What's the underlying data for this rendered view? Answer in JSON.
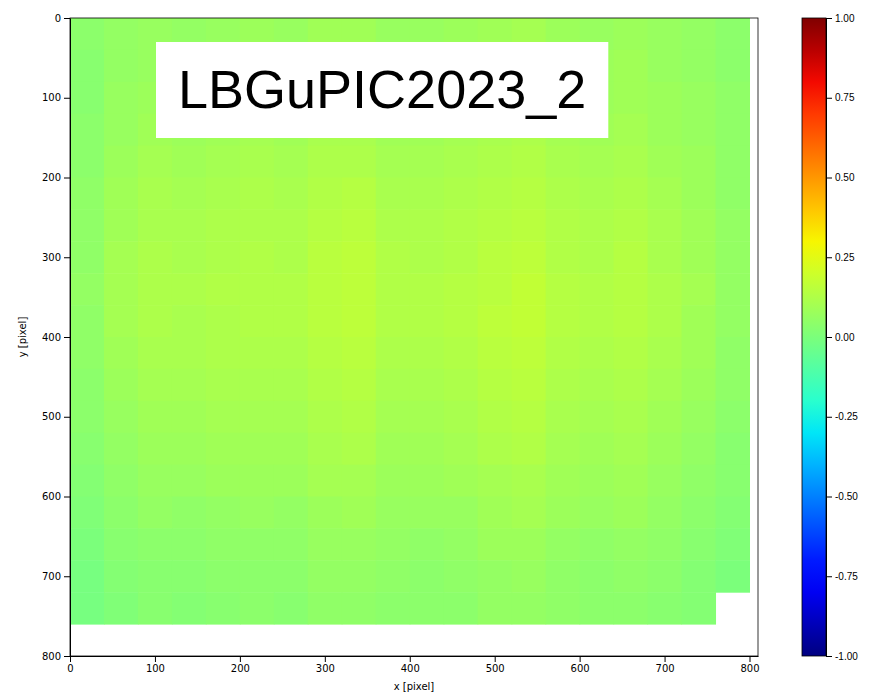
{
  "chart_data": {
    "type": "heatmap",
    "title": "LBGuPIC2023_2",
    "x_label": "x [pixel]",
    "y_label": "y [pixel]",
    "xlim": [
      0,
      810
    ],
    "ylim": [
      800,
      0
    ],
    "xticks": [
      0,
      100,
      200,
      300,
      400,
      500,
      600,
      700,
      800
    ],
    "yticks": [
      0,
      100,
      200,
      300,
      400,
      500,
      600,
      700,
      800
    ],
    "x_bins": [
      0,
      40,
      80,
      120,
      160,
      200,
      240,
      280,
      320,
      360,
      400,
      440,
      480,
      520,
      560,
      600,
      640,
      680,
      720,
      760,
      800
    ],
    "y_bins": [
      0,
      40,
      80,
      120,
      160,
      200,
      240,
      280,
      320,
      360,
      400,
      440,
      480,
      520,
      560,
      600,
      640,
      680,
      720,
      760
    ],
    "cells": [
      [
        0.04,
        0.06,
        0.07,
        0.06,
        0.07,
        0.08,
        0.07,
        0.09,
        0.09,
        0.07,
        0.07,
        0.08,
        0.09,
        0.1,
        0.08,
        0.07,
        0.08,
        0.07,
        0.06,
        0.04
      ],
      [
        0.03,
        0.06,
        0.07,
        0.07,
        0.08,
        0.08,
        0.08,
        0.1,
        0.09,
        0.08,
        0.08,
        0.08,
        0.1,
        0.1,
        0.08,
        0.08,
        0.09,
        0.07,
        0.06,
        0.04
      ],
      [
        0.03,
        0.07,
        0.08,
        0.07,
        0.08,
        0.09,
        0.08,
        0.1,
        0.1,
        0.08,
        0.08,
        0.09,
        0.11,
        0.11,
        0.09,
        0.08,
        0.09,
        0.08,
        0.07,
        0.05
      ],
      [
        0.04,
        0.07,
        0.09,
        0.08,
        0.09,
        0.1,
        0.09,
        0.11,
        0.11,
        0.09,
        0.09,
        0.1,
        0.11,
        0.12,
        0.1,
        0.09,
        0.1,
        0.08,
        0.07,
        0.05
      ],
      [
        0.04,
        0.08,
        0.1,
        0.09,
        0.1,
        0.11,
        0.1,
        0.12,
        0.12,
        0.1,
        0.1,
        0.11,
        0.12,
        0.13,
        0.11,
        0.1,
        0.11,
        0.09,
        0.08,
        0.05
      ],
      [
        0.05,
        0.09,
        0.11,
        0.1,
        0.11,
        0.12,
        0.11,
        0.13,
        0.14,
        0.11,
        0.11,
        0.12,
        0.13,
        0.14,
        0.12,
        0.11,
        0.12,
        0.1,
        0.08,
        0.05
      ],
      [
        0.05,
        0.09,
        0.11,
        0.11,
        0.12,
        0.12,
        0.12,
        0.14,
        0.15,
        0.12,
        0.12,
        0.13,
        0.14,
        0.15,
        0.13,
        0.12,
        0.13,
        0.11,
        0.09,
        0.06
      ],
      [
        0.05,
        0.1,
        0.12,
        0.11,
        0.12,
        0.13,
        0.12,
        0.15,
        0.16,
        0.13,
        0.12,
        0.13,
        0.15,
        0.16,
        0.13,
        0.12,
        0.14,
        0.11,
        0.09,
        0.06
      ],
      [
        0.06,
        0.1,
        0.12,
        0.12,
        0.13,
        0.13,
        0.13,
        0.15,
        0.16,
        0.13,
        0.13,
        0.14,
        0.15,
        0.17,
        0.14,
        0.13,
        0.14,
        0.12,
        0.1,
        0.06
      ],
      [
        0.05,
        0.1,
        0.12,
        0.11,
        0.12,
        0.13,
        0.13,
        0.15,
        0.16,
        0.13,
        0.13,
        0.14,
        0.16,
        0.17,
        0.14,
        0.13,
        0.14,
        0.12,
        0.09,
        0.06
      ],
      [
        0.05,
        0.09,
        0.11,
        0.11,
        0.12,
        0.12,
        0.12,
        0.14,
        0.15,
        0.12,
        0.12,
        0.13,
        0.15,
        0.16,
        0.13,
        0.12,
        0.13,
        0.11,
        0.09,
        0.05
      ],
      [
        0.04,
        0.08,
        0.1,
        0.1,
        0.11,
        0.11,
        0.11,
        0.13,
        0.14,
        0.11,
        0.11,
        0.12,
        0.14,
        0.15,
        0.12,
        0.11,
        0.12,
        0.1,
        0.08,
        0.05
      ],
      [
        0.04,
        0.07,
        0.09,
        0.09,
        0.1,
        0.1,
        0.1,
        0.12,
        0.13,
        0.1,
        0.1,
        0.11,
        0.13,
        0.14,
        0.11,
        0.1,
        0.11,
        0.09,
        0.07,
        0.04
      ],
      [
        0.03,
        0.06,
        0.08,
        0.08,
        0.09,
        0.09,
        0.09,
        0.11,
        0.12,
        0.09,
        0.09,
        0.1,
        0.12,
        0.13,
        0.1,
        0.09,
        0.1,
        0.08,
        0.06,
        0.03
      ],
      [
        0.02,
        0.05,
        0.07,
        0.07,
        0.08,
        0.08,
        0.08,
        0.1,
        0.1,
        0.08,
        0.08,
        0.09,
        0.1,
        0.11,
        0.09,
        0.08,
        0.09,
        0.07,
        0.05,
        0.03
      ],
      [
        0.01,
        0.04,
        0.06,
        0.05,
        0.06,
        0.07,
        0.06,
        0.08,
        0.09,
        0.07,
        0.07,
        0.07,
        0.09,
        0.1,
        0.08,
        0.07,
        0.08,
        0.06,
        0.04,
        0.02
      ],
      [
        0.0,
        0.03,
        0.04,
        0.04,
        0.05,
        0.05,
        0.05,
        0.07,
        0.07,
        0.06,
        0.05,
        0.06,
        0.08,
        0.08,
        0.06,
        0.05,
        0.06,
        0.05,
        0.03,
        0.01
      ],
      [
        -0.01,
        0.02,
        0.03,
        0.03,
        0.04,
        0.04,
        0.04,
        0.06,
        0.06,
        0.05,
        0.04,
        0.05,
        0.06,
        0.07,
        0.05,
        0.04,
        0.05,
        0.04,
        0.02,
        0.0
      ],
      [
        -0.01,
        0.01,
        0.03,
        0.02,
        0.03,
        0.04,
        0.03,
        0.05,
        0.05,
        0.04,
        0.04,
        0.04,
        0.06,
        0.06,
        0.05,
        0.04,
        0.04,
        0.03,
        0.02,
        null
      ]
    ],
    "colorbar": {
      "range": [
        -1,
        1
      ],
      "ticks": [
        {
          "value": -1,
          "label": "-1.00"
        },
        {
          "value": -0.75,
          "label": "-0.75"
        },
        {
          "value": -0.5,
          "label": "-0.50"
        },
        {
          "value": -0.25,
          "label": "-0.25"
        },
        {
          "value": 0,
          "label": "0.00"
        },
        {
          "value": 0.25,
          "label": "0.25"
        },
        {
          "value": 0.5,
          "label": "0.50"
        },
        {
          "value": 0.75,
          "label": "0.75"
        },
        {
          "value": 1,
          "label": "1.00"
        }
      ]
    }
  }
}
